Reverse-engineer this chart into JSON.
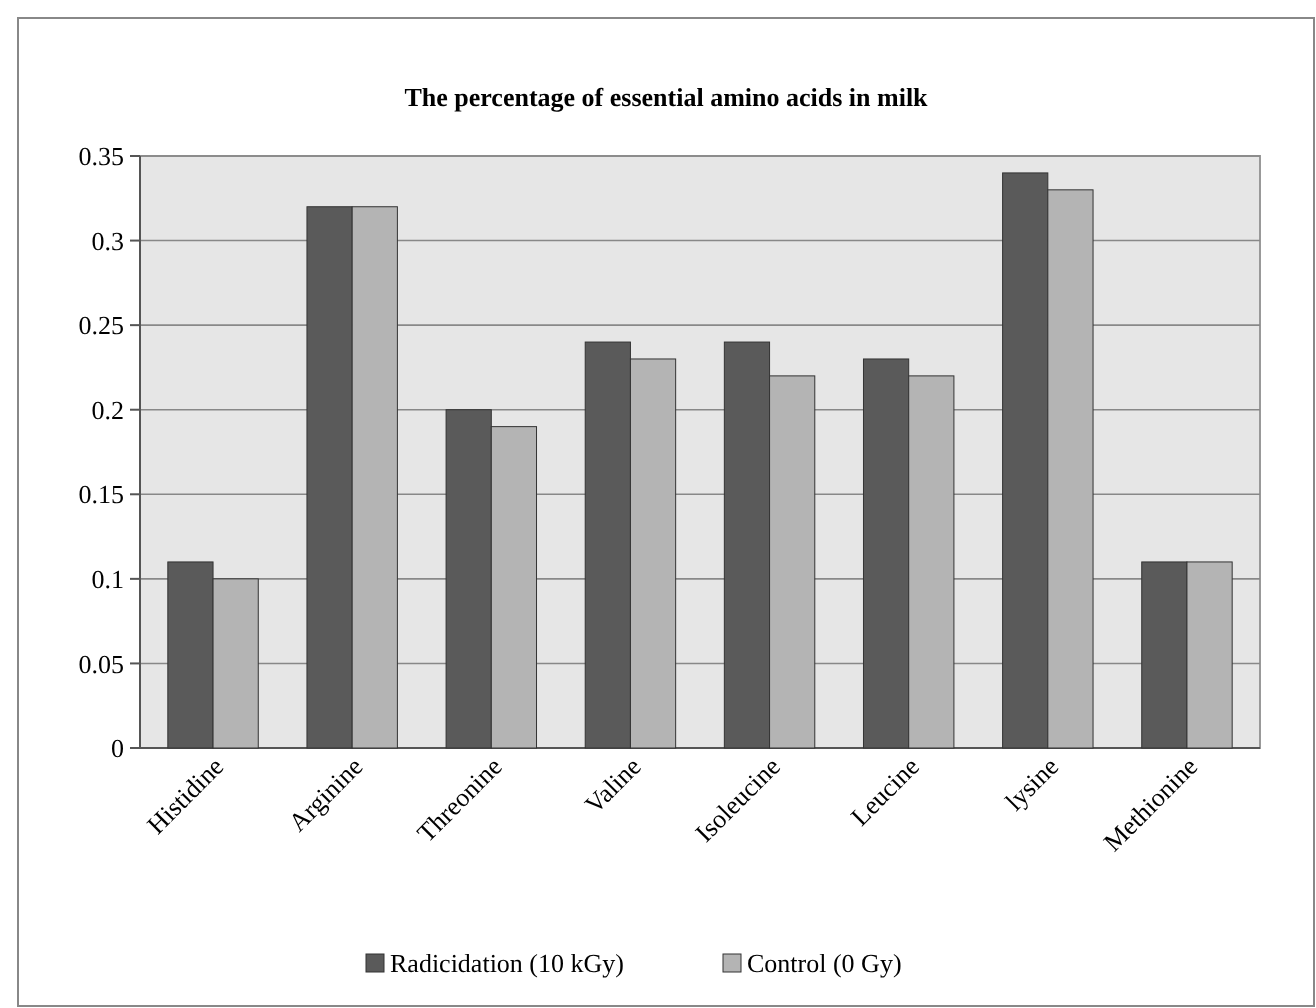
{
  "chart_data": {
    "type": "bar",
    "title": "The percentage of essential amino acids in milk",
    "categories": [
      "Histidine",
      "Arginine",
      "Threonine",
      "Valine",
      "Isoleucine",
      "Leucine",
      "lysine",
      "Methionine"
    ],
    "series": [
      {
        "name": "Radicidation (10 kGy)",
        "color": "#5a5a5a",
        "values": [
          0.11,
          0.32,
          0.2,
          0.24,
          0.24,
          0.23,
          0.34,
          0.11
        ]
      },
      {
        "name": "Control (0 Gy)",
        "color": "#b4b4b4",
        "values": [
          0.1,
          0.32,
          0.19,
          0.23,
          0.22,
          0.22,
          0.33,
          0.11
        ]
      }
    ],
    "ylim": [
      0,
      0.35
    ],
    "yticks": [
      0,
      {
        "value": 0.05,
        "label": "0.05"
      },
      {
        "value": 0.1,
        "label": "0.1"
      },
      {
        "value": 0.15,
        "label": "0.15"
      },
      {
        "value": 0.2,
        "label": "0.2"
      },
      {
        "value": 0.25,
        "label": "0.25"
      },
      {
        "value": 0.3,
        "label": "0.3"
      },
      {
        "value": 0.35,
        "label": "0.35"
      }
    ],
    "grid": "y",
    "legend": "bottom"
  }
}
